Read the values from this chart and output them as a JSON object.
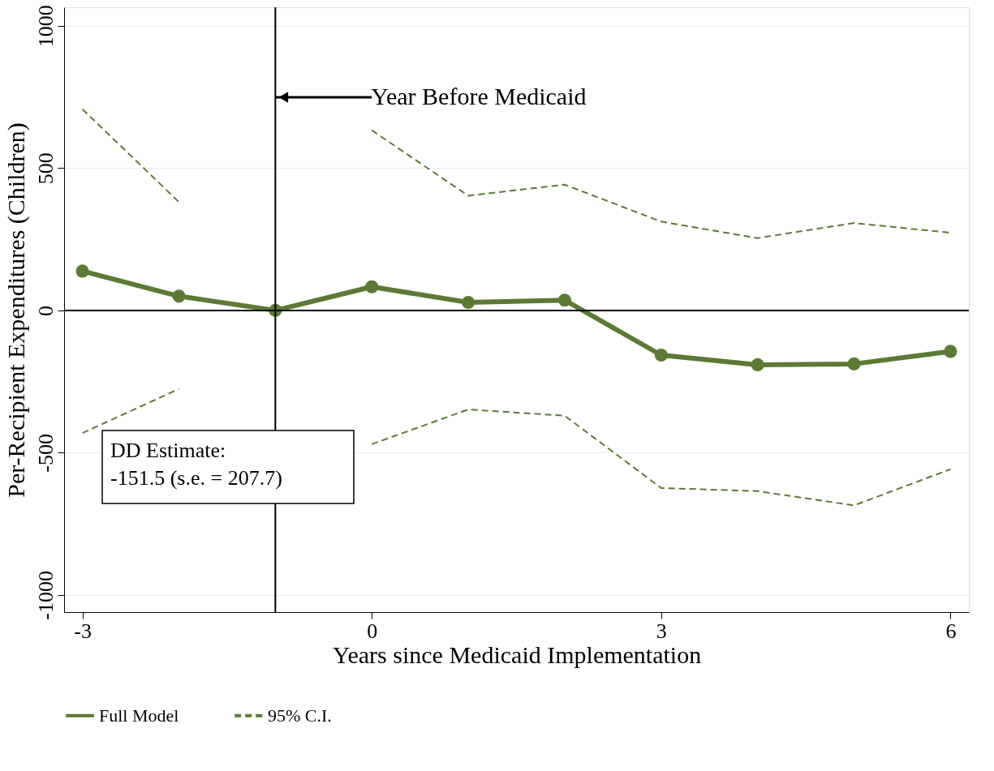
{
  "chart_data": {
    "type": "line",
    "xlabel": "Years since Medicaid Implementation",
    "ylabel": "Per-Recipient Expenditures (Children)",
    "x": [
      -3,
      -2,
      -1,
      0,
      1,
      2,
      3,
      4,
      5,
      6
    ],
    "series": [
      {
        "name": "Full Model",
        "color": "#5b7a35",
        "marker": "circle",
        "line_style": "solid",
        "values": [
          138,
          50,
          0,
          83,
          28,
          36,
          -157,
          -191,
          -188,
          -144
        ]
      },
      {
        "name": "95% C.I.",
        "color": "#5b7a35",
        "marker": "none",
        "line_style": "dashed",
        "values": [
          707,
          381,
          null,
          633,
          403,
          442,
          312,
          254,
          307,
          273
        ]
      },
      {
        "color": "#5b7a35",
        "marker": "none",
        "line_style": "dashed",
        "values": [
          -431,
          -276,
          null,
          -470,
          -348,
          -370,
          -624,
          -635,
          -685,
          -558
        ]
      }
    ],
    "xlim": [
      -3.19,
      6.19
    ],
    "xticks": [
      -3,
      0,
      3,
      6
    ],
    "ylim": [
      -1060,
      1065
    ],
    "yticks": [
      -1000,
      -500,
      0,
      500,
      1000
    ],
    "grid": "y",
    "legend": "bottom",
    "ref_lines": [
      {
        "axis": "x",
        "value": -1,
        "label": "Year Before Medicaid",
        "color": "#000000"
      },
      {
        "axis": "y",
        "value": 0,
        "color": "#000000"
      }
    ],
    "annotations": [
      "DD Estimate:\n-151.5 (s.e. = 207.7)"
    ]
  }
}
